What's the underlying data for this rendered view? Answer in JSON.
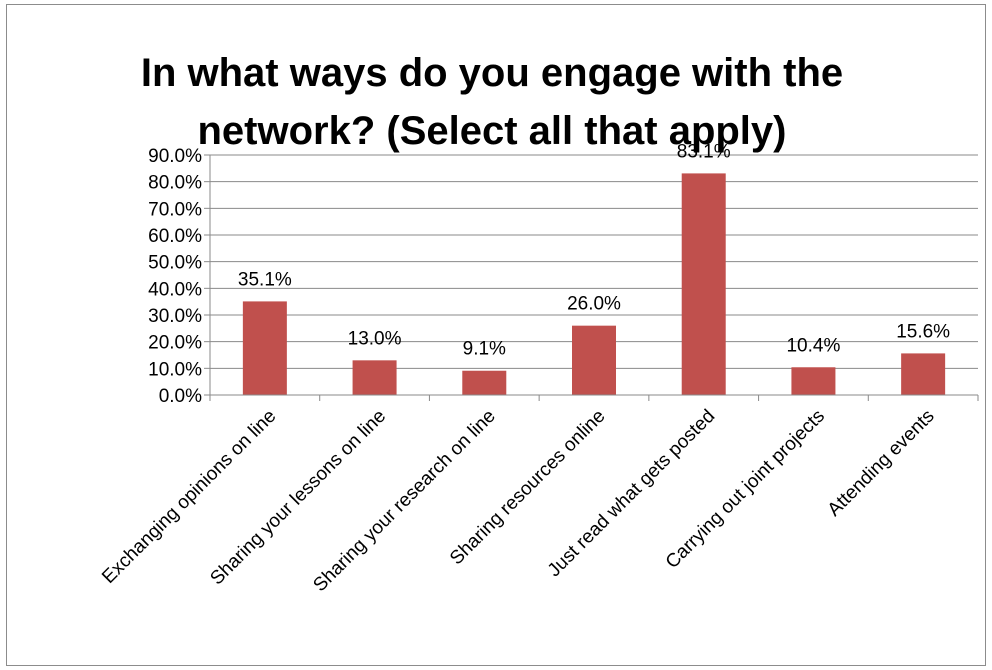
{
  "chart_data": {
    "type": "bar",
    "title_lines": [
      "In what ways do you engage with the",
      "network? (Select all that apply)"
    ],
    "categories": [
      "Exchanging opinions on line",
      "Sharing your lessons on line",
      "Sharing your research on line",
      "Sharing resources online",
      "Just read what gets posted",
      "Carrying out joint projects",
      "Attending events"
    ],
    "values": [
      35.1,
      13.0,
      9.1,
      26.0,
      83.1,
      10.4,
      15.6
    ],
    "data_labels": [
      "35.1%",
      "13.0%",
      "9.1%",
      "26.0%",
      "83.1%",
      "10.4%",
      "15.6%"
    ],
    "y_ticks": [
      "0.0%",
      "10.0%",
      "20.0%",
      "30.0%",
      "40.0%",
      "50.0%",
      "60.0%",
      "70.0%",
      "80.0%",
      "90.0%"
    ],
    "ylim": [
      0,
      90
    ],
    "grid": true,
    "legend": false,
    "bar_color": "#c0504d"
  }
}
